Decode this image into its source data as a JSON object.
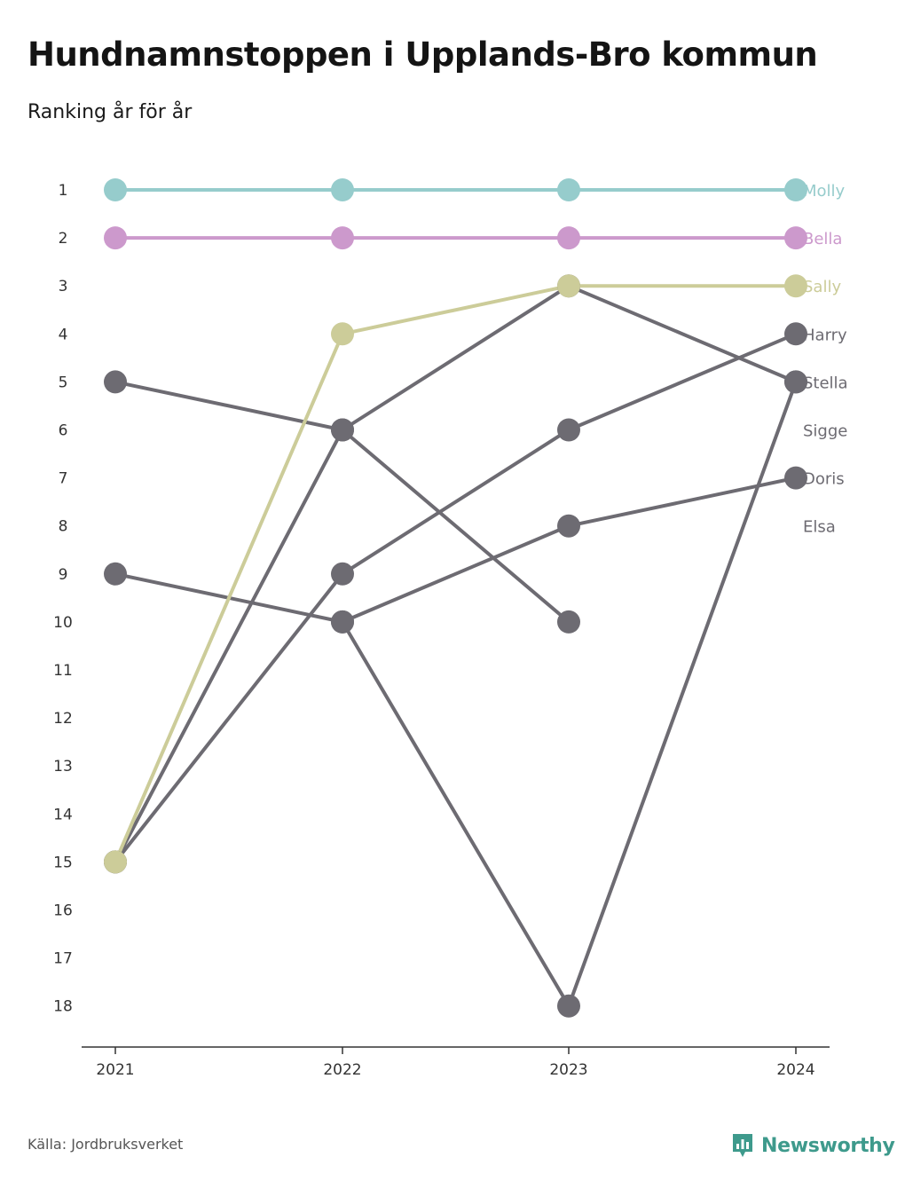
{
  "title": "Hundnamnstoppen i Upplands-Bro kommun",
  "subtitle": "Ranking år för år",
  "source": "Källa: Jordbruksverket",
  "brand": {
    "name": "Newsworthy",
    "icon": "newsworthy-logo-icon",
    "color": "#3e9a8c"
  },
  "colors": {
    "molly": "#96cccc",
    "bella": "#cc99cc",
    "sally": "#cccc99",
    "other": "#6d6b72",
    "axis": "#333333"
  },
  "chart_data": {
    "type": "line",
    "title": "Hundnamnstoppen i Upplands-Bro kommun",
    "subtitle": "Ranking år för år",
    "categories": [
      "2021",
      "2022",
      "2023",
      "2024"
    ],
    "y_ticks": [
      "1",
      "2",
      "3",
      "4",
      "5",
      "6",
      "7",
      "8",
      "9",
      "10",
      "11",
      "12",
      "13",
      "14",
      "15",
      "16",
      "17",
      "18"
    ],
    "ylim": [
      1,
      18
    ],
    "y_inverted": true,
    "grid": false,
    "series": [
      {
        "name": "Molly",
        "color": "#96cccc",
        "values": [
          1,
          1,
          1,
          1
        ]
      },
      {
        "name": "Bella",
        "color": "#cc99cc",
        "values": [
          2,
          2,
          2,
          2
        ]
      },
      {
        "name": "Sally",
        "color": "#cccc99",
        "values": [
          15,
          4,
          3,
          3
        ]
      },
      {
        "name": "Harry",
        "color": "#6d6b72",
        "values": [
          15,
          9,
          6,
          4
        ]
      },
      {
        "name": "Stella",
        "color": "#6d6b72",
        "values": [
          15,
          6,
          3,
          5
        ]
      },
      {
        "name": "Sigge",
        "color": "#6d6b72",
        "values": [
          5,
          6,
          10,
          null
        ]
      },
      {
        "name": "Doris",
        "color": "#6d6b72",
        "values": [
          9,
          10,
          8,
          7
        ]
      },
      {
        "name": "Elsa",
        "color": "#6d6b72",
        "values": [
          null,
          10,
          18,
          5
        ]
      }
    ],
    "end_labels": [
      {
        "name": "Molly",
        "rank": 1
      },
      {
        "name": "Bella",
        "rank": 2
      },
      {
        "name": "Sally",
        "rank": 3
      },
      {
        "name": "Harry",
        "rank": 4
      },
      {
        "name": "Stella",
        "rank": 5
      },
      {
        "name": "Sigge",
        "rank": 6
      },
      {
        "name": "Doris",
        "rank": 7
      },
      {
        "name": "Elsa",
        "rank": 8
      }
    ]
  }
}
